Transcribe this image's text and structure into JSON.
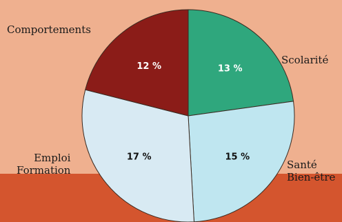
{
  "colors": {
    "background": "#efb08f",
    "bottom_band": "#d4552e",
    "outline": "#3a2a20"
  },
  "chart_data": {
    "type": "pie",
    "slices": [
      {
        "label": "Scolarité",
        "value": 13,
        "value_label": "13 %",
        "color": "#2fa77d",
        "value_color": "#ffffff"
      },
      {
        "label": "Santé Bien-être",
        "label_lines": [
          "Santé",
          "Bien-être"
        ],
        "value": 15,
        "value_label": "15 %",
        "color": "#bfe6f0",
        "value_color": "#111111"
      },
      {
        "label": "Emploi Formation",
        "label_lines": [
          "Emploi",
          "Formation"
        ],
        "value": 17,
        "value_label": "17 %",
        "color": "#d8eaf3",
        "value_color": "#111111"
      },
      {
        "label": "Comportements",
        "value": 12,
        "value_label": "12 %",
        "color": "#8b1c18",
        "value_color": "#ffffff"
      }
    ],
    "legend": "none"
  }
}
